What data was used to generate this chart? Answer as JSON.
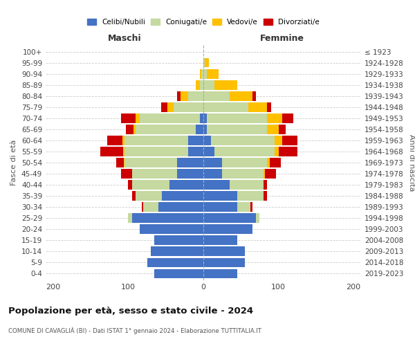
{
  "age_groups": [
    "0-4",
    "5-9",
    "10-14",
    "15-19",
    "20-24",
    "25-29",
    "30-34",
    "35-39",
    "40-44",
    "45-49",
    "50-54",
    "55-59",
    "60-64",
    "65-69",
    "70-74",
    "75-79",
    "80-84",
    "85-89",
    "90-94",
    "95-99",
    "100+"
  ],
  "birth_years": [
    "2019-2023",
    "2014-2018",
    "2009-2013",
    "2004-2008",
    "1999-2003",
    "1994-1998",
    "1989-1993",
    "1984-1988",
    "1979-1983",
    "1974-1978",
    "1969-1973",
    "1964-1968",
    "1959-1963",
    "1954-1958",
    "1949-1953",
    "1944-1948",
    "1939-1943",
    "1934-1938",
    "1929-1933",
    "1924-1928",
    "≤ 1923"
  ],
  "maschi": {
    "celibi": [
      65,
      75,
      70,
      65,
      85,
      95,
      60,
      55,
      45,
      35,
      35,
      20,
      20,
      10,
      5,
      0,
      0,
      0,
      0,
      0,
      0
    ],
    "coniugati": [
      0,
      0,
      0,
      0,
      0,
      5,
      20,
      35,
      50,
      60,
      70,
      85,
      85,
      80,
      80,
      40,
      20,
      5,
      3,
      0,
      0
    ],
    "vedovi": [
      0,
      0,
      0,
      0,
      0,
      0,
      0,
      0,
      0,
      0,
      1,
      2,
      3,
      3,
      5,
      8,
      10,
      5,
      2,
      0,
      0
    ],
    "divorziati": [
      0,
      0,
      0,
      0,
      0,
      0,
      2,
      5,
      5,
      15,
      10,
      30,
      20,
      10,
      20,
      8,
      5,
      0,
      0,
      0,
      0
    ]
  },
  "femmine": {
    "nubili": [
      45,
      55,
      55,
      45,
      65,
      70,
      45,
      45,
      35,
      25,
      25,
      15,
      10,
      5,
      5,
      0,
      0,
      0,
      0,
      0,
      0
    ],
    "coniugate": [
      0,
      0,
      0,
      0,
      0,
      5,
      18,
      35,
      45,
      55,
      60,
      80,
      85,
      80,
      80,
      60,
      35,
      15,
      5,
      2,
      0
    ],
    "vedove": [
      0,
      0,
      0,
      0,
      0,
      0,
      0,
      0,
      0,
      2,
      3,
      5,
      10,
      15,
      20,
      25,
      30,
      30,
      15,
      5,
      0
    ],
    "divorziate": [
      0,
      0,
      0,
      0,
      0,
      0,
      2,
      5,
      5,
      15,
      15,
      25,
      20,
      10,
      15,
      5,
      5,
      0,
      0,
      0,
      0
    ]
  },
  "colors": {
    "celibi": "#4472c4",
    "coniugati": "#c5d9a0",
    "vedovi": "#ffc000",
    "divorziati": "#cc0000"
  },
  "xlim": [
    -210,
    210
  ],
  "xticks": [
    -200,
    -100,
    0,
    100,
    200
  ],
  "xticklabels": [
    "200",
    "100",
    "0",
    "100",
    "200"
  ],
  "title": "Popolazione per età, sesso e stato civile - 2024",
  "subtitle": "COMUNE DI CAVAGLIÀ (BI) - Dati ISTAT 1° gennaio 2024 - Elaborazione TUTTITALIA.IT",
  "ylabel_left": "Fasce di età",
  "ylabel_right": "Anni di nascita",
  "label_maschi": "Maschi",
  "label_femmine": "Femmine",
  "legend_labels": [
    "Celibi/Nubili",
    "Coniugati/e",
    "Vedovi/e",
    "Divorziati/e"
  ],
  "bg_color": "#ffffff",
  "grid_color": "#cccccc"
}
